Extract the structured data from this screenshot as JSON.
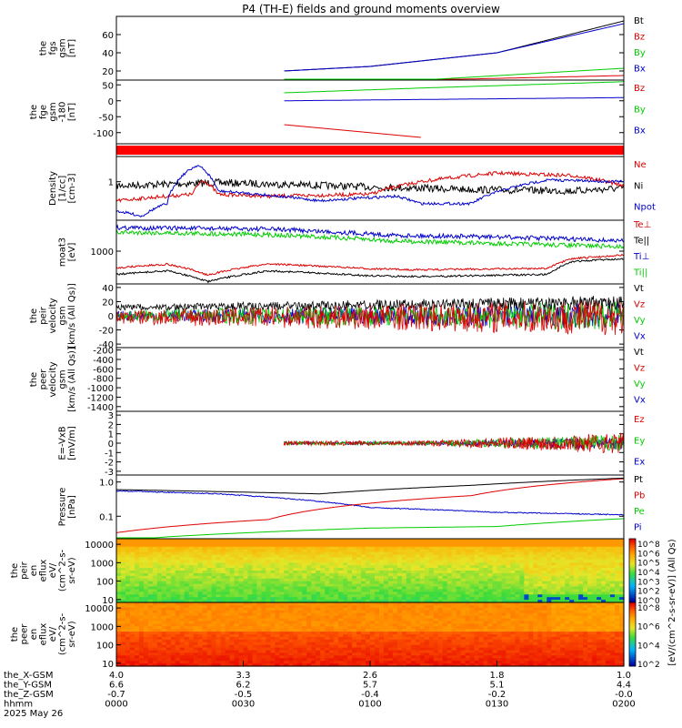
{
  "title": "P4 (TH-E) fields and ground moments overview",
  "colors": {
    "black": "#000000",
    "red": "#dd0000",
    "green": "#00cc00",
    "blue": "#0000cc",
    "bar_red": "#ff0000"
  },
  "panels": [
    {
      "ylabel": [
        "the",
        "fgs",
        "gsm",
        "[nT]"
      ],
      "yscale": "linear",
      "ylim": [
        10,
        80
      ],
      "yticks": [
        {
          "v": 60,
          "label": "60"
        },
        {
          "v": 40,
          "label": "40"
        },
        {
          "v": 20,
          "label": "20"
        }
      ],
      "legend": [
        {
          "label": "Bt",
          "color": "black"
        },
        {
          "label": "Bz",
          "color": "red"
        },
        {
          "label": "By",
          "color": "green"
        },
        {
          "label": "Bx",
          "color": "blue"
        }
      ]
    },
    {
      "ylabel": [
        "the",
        "fge",
        "gsm",
        "-180",
        "[nT]"
      ],
      "yscale": "linear",
      "ylim": [
        -135,
        65
      ],
      "yticks": [
        {
          "v": 50,
          "label": "50"
        },
        {
          "v": 0,
          "label": "0"
        },
        {
          "v": -50,
          "label": "-50"
        },
        {
          "v": -100,
          "label": "-100"
        }
      ],
      "legend": [
        {
          "label": "Bz",
          "color": "red"
        },
        {
          "label": "By",
          "color": "green"
        },
        {
          "label": "Bx",
          "color": "blue"
        }
      ]
    },
    {
      "ylabel": [
        "Density",
        "[1/cc]",
        "[cm-3]"
      ],
      "yscale": "log",
      "ylim": [
        0.12,
        4
      ],
      "yticks": [
        {
          "v": 1,
          "label": "1"
        }
      ],
      "legend": [
        {
          "label": "Ne",
          "color": "red"
        },
        {
          "label": "Ni",
          "color": "black"
        },
        {
          "label": "Npot",
          "color": "blue"
        }
      ]
    },
    {
      "ylabel": [
        "moat3",
        "[eV]"
      ],
      "yscale": "log",
      "ylim": [
        150,
        6000
      ],
      "yticks": [
        {
          "v": 1000,
          "label": "1000"
        }
      ],
      "legend": [
        {
          "label": "Te⊥",
          "color": "red"
        },
        {
          "label": "Te||",
          "color": "black"
        },
        {
          "label": "Ti⊥",
          "color": "blue"
        },
        {
          "label": "Ti||",
          "color": "green"
        }
      ]
    },
    {
      "ylabel": [
        "the",
        "peir",
        "velocity",
        "gsm",
        "[km/s (All Qs)]"
      ],
      "yscale": "linear",
      "ylim": [
        -45,
        45
      ],
      "yticks": [
        {
          "v": 40,
          "label": "40"
        },
        {
          "v": 20,
          "label": "20"
        },
        {
          "v": 0,
          "label": "0"
        },
        {
          "v": -20,
          "label": "-20"
        },
        {
          "v": -40,
          "label": "-40"
        }
      ],
      "legend": [
        {
          "label": "Vt",
          "color": "black"
        },
        {
          "label": "Vz",
          "color": "red"
        },
        {
          "label": "Vy",
          "color": "green"
        },
        {
          "label": "Vx",
          "color": "blue"
        }
      ]
    },
    {
      "ylabel": [
        "the",
        "peer",
        "velocity",
        "gsm",
        "[km/s (All Qs)]"
      ],
      "yscale": "linear",
      "ylim": [
        -1500,
        -150
      ],
      "yticks": [
        {
          "v": -200,
          "label": "-200"
        },
        {
          "v": -400,
          "label": "-400"
        },
        {
          "v": -600,
          "label": "-600"
        },
        {
          "v": -800,
          "label": "-800"
        },
        {
          "v": -1000,
          "label": "-1000"
        },
        {
          "v": -1200,
          "label": "-1200"
        },
        {
          "v": -1400,
          "label": "-1400"
        }
      ],
      "legend": [
        {
          "label": "Vt",
          "color": "black"
        },
        {
          "label": "Vz",
          "color": "red"
        },
        {
          "label": "Vy",
          "color": "green"
        },
        {
          "label": "Vx",
          "color": "blue"
        }
      ]
    },
    {
      "ylabel": [
        "E=-VxB",
        "[mV/m]"
      ],
      "yscale": "linear",
      "ylim": [
        -3.4,
        3.4
      ],
      "yticks": [
        {
          "v": 3,
          "label": "3"
        },
        {
          "v": 2,
          "label": "2"
        },
        {
          "v": 1,
          "label": "1"
        },
        {
          "v": 0,
          "label": "0"
        },
        {
          "v": -1,
          "label": "-1"
        },
        {
          "v": -2,
          "label": "-2"
        },
        {
          "v": -3,
          "label": "-3"
        }
      ],
      "legend": [
        {
          "label": "Ez",
          "color": "red"
        },
        {
          "label": "Ey",
          "color": "green"
        },
        {
          "label": "Ex",
          "color": "blue"
        }
      ]
    },
    {
      "ylabel": [
        "Pressure",
        "[nPa]"
      ],
      "yscale": "log",
      "ylim": [
        0.022,
        1.6
      ],
      "yticks": [
        {
          "v": 1,
          "label": "1.0"
        },
        {
          "v": 0.1,
          "label": "0.1"
        }
      ],
      "legend": [
        {
          "label": "Pt",
          "color": "black"
        },
        {
          "label": "Pb",
          "color": "red"
        },
        {
          "label": "Pe",
          "color": "green"
        },
        {
          "label": "Pi",
          "color": "blue"
        }
      ]
    },
    {
      "ylabel": [
        "the",
        "peir",
        "en",
        "eflux",
        "eV/",
        "(cm^2-s-",
        "sr-eV)"
      ],
      "yscale": "log",
      "ylim": [
        7,
        20000
      ],
      "yticks": [
        {
          "v": 10000,
          "label": "10000"
        },
        {
          "v": 1000,
          "label": "1000"
        },
        {
          "v": 100,
          "label": "100"
        },
        {
          "v": 10,
          "label": "10"
        }
      ],
      "colorbar": {
        "ticks": [
          "10^8",
          "10^6",
          "10^5",
          "10^4",
          "10^3",
          "10^2",
          "10^0"
        ],
        "label": "[eV/(cm^2-s-sr-eV)] (All Qs)"
      }
    },
    {
      "ylabel": [
        "the",
        "peer",
        "en",
        "eflux",
        "eV/",
        "(cm^2-s-",
        "sr-eV)"
      ],
      "yscale": "log",
      "ylim": [
        7,
        20000
      ],
      "yticks": [
        {
          "v": 10000,
          "label": "10000"
        },
        {
          "v": 1000,
          "label": "1000"
        },
        {
          "v": 100,
          "label": "100"
        },
        {
          "v": 10,
          "label": "10"
        }
      ],
      "colorbar": {
        "ticks": [
          "10^8",
          "10^6",
          "10^4",
          "10^2"
        ]
      }
    }
  ],
  "xaxis": {
    "rows": [
      {
        "label": "the_X-GSM",
        "values": [
          "4.0",
          "3.3",
          "2.6",
          "1.8",
          "1.0"
        ]
      },
      {
        "label": "the_Y-GSM",
        "values": [
          "6.6",
          "6.2",
          "5.7",
          "5.1",
          "4.4"
        ]
      },
      {
        "label": "the_Z-GSM",
        "values": [
          "-0.7",
          "-0.5",
          "-0.4",
          "-0.2",
          "-0.0"
        ]
      },
      {
        "label": "hhmm",
        "values": [
          "0000",
          "0030",
          "0100",
          "0130",
          "0200"
        ]
      }
    ],
    "date": "2025 May 26"
  },
  "chart_data": {
    "type": "line",
    "title": "P4 (TH-E) fields and ground moments overview",
    "x_ticks_hhmm": [
      "0000",
      "0030",
      "0100",
      "0130",
      "0200"
    ],
    "series": [
      {
        "panel": 0,
        "name": "Bt",
        "x": [
          0.33,
          0.5,
          0.75,
          1.0
        ],
        "values": [
          20,
          25,
          40,
          75
        ]
      },
      {
        "panel": 0,
        "name": "Bz",
        "x": [
          0.33,
          0.6,
          1.0
        ],
        "values": [
          10,
          10,
          15
        ]
      },
      {
        "panel": 0,
        "name": "By",
        "x": [
          0.33,
          0.6,
          1.0
        ],
        "values": [
          8,
          10,
          23
        ]
      },
      {
        "panel": 0,
        "name": "Bx",
        "x": [
          0.33,
          0.5,
          0.75,
          1.0
        ],
        "values": [
          20,
          25,
          40,
          72
        ]
      },
      {
        "panel": 1,
        "name": "Bz",
        "x": [
          0.33,
          0.5,
          0.6
        ],
        "values": [
          -75,
          -100,
          -115
        ]
      },
      {
        "panel": 1,
        "name": "By",
        "x": [
          0.33,
          0.6,
          1.0
        ],
        "values": [
          25,
          40,
          60
        ]
      },
      {
        "panel": 1,
        "name": "Bx",
        "x": [
          0.33,
          1.0
        ],
        "values": [
          0,
          10
        ]
      },
      {
        "panel": 2,
        "name": "Ne",
        "x": [
          0,
          0.15,
          0.17,
          0.2,
          0.3,
          0.5,
          0.6,
          0.75,
          0.9,
          1.0
        ],
        "values": [
          0.35,
          0.5,
          1.1,
          0.5,
          0.45,
          0.5,
          1.0,
          1.6,
          1.4,
          0.8
        ]
      },
      {
        "panel": 2,
        "name": "Ni",
        "x": [
          0,
          0.2,
          0.5,
          0.7,
          0.9,
          1.0
        ],
        "values": [
          0.8,
          0.95,
          0.75,
          0.65,
          0.6,
          0.7
        ]
      },
      {
        "panel": 2,
        "name": "Npot",
        "x": [
          0,
          0.05,
          0.1,
          0.16,
          0.2,
          0.4,
          0.55,
          0.6,
          0.7,
          0.85,
          1.0
        ],
        "values": [
          0.2,
          0.15,
          0.3,
          2.5,
          0.6,
          0.35,
          0.45,
          0.3,
          0.3,
          1.1,
          1.0
        ]
      },
      {
        "panel": 3,
        "name": "Te⊥",
        "x": [
          0,
          0.1,
          0.18,
          0.3,
          0.5,
          0.6,
          0.85,
          0.9,
          1.0
        ],
        "values": [
          380,
          470,
          250,
          480,
          360,
          340,
          370,
          650,
          800
        ]
      },
      {
        "panel": 3,
        "name": "Te||",
        "x": [
          0,
          0.1,
          0.18,
          0.3,
          0.5,
          0.6,
          0.85,
          0.9,
          1.0
        ],
        "values": [
          260,
          320,
          170,
          320,
          240,
          230,
          260,
          550,
          650
        ]
      },
      {
        "panel": 3,
        "name": "Ti⊥",
        "x": [
          0,
          0.3,
          0.55,
          0.8,
          1.0
        ],
        "values": [
          3900,
          3600,
          2500,
          2200,
          1800
        ]
      },
      {
        "panel": 3,
        "name": "Ti||",
        "x": [
          0,
          0.3,
          0.55,
          0.8,
          1.0
        ],
        "values": [
          3000,
          2600,
          1800,
          1500,
          1300
        ]
      },
      {
        "panel": 6,
        "name": "Ez",
        "x": [
          0.33,
          1.0
        ],
        "values": [
          0,
          0
        ]
      },
      {
        "panel": 6,
        "name": "Ey",
        "x": [
          0.33,
          1.0
        ],
        "values": [
          0,
          0
        ]
      },
      {
        "panel": 7,
        "name": "Pt",
        "x": [
          0,
          0.4,
          0.7,
          1.0
        ],
        "values": [
          0.6,
          0.45,
          0.8,
          1.3
        ]
      },
      {
        "panel": 7,
        "name": "Pb",
        "x": [
          0,
          0.3,
          0.7,
          1.0
        ],
        "values": [
          0.033,
          0.08,
          0.4,
          1.25
        ]
      },
      {
        "panel": 7,
        "name": "Pe",
        "x": [
          0,
          0.1,
          0.5,
          0.75,
          1.0
        ],
        "values": [
          0.018,
          0.025,
          0.045,
          0.05,
          0.085
        ]
      },
      {
        "panel": 7,
        "name": "Pi",
        "x": [
          0,
          0.2,
          0.5,
          0.75,
          1.0
        ],
        "values": [
          0.55,
          0.45,
          0.18,
          0.13,
          0.11
        ]
      }
    ]
  }
}
